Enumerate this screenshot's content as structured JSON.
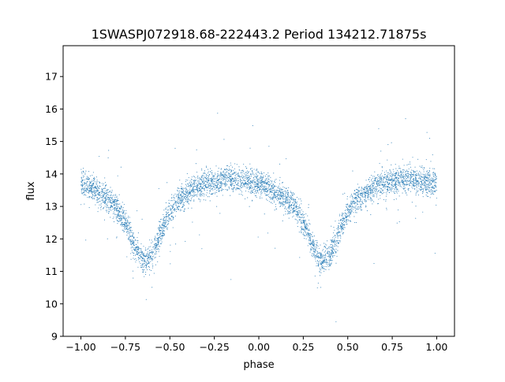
{
  "chart_data": {
    "type": "scatter",
    "title": "1SWASPJ072918.68-222443.2 Period 134212.71875s",
    "xlabel": "phase",
    "ylabel": "flux",
    "xlim": [
      -1.1,
      1.1
    ],
    "ylim": [
      9.0,
      17.95
    ],
    "xticks": [
      -1.0,
      -0.75,
      -0.5,
      -0.25,
      0.0,
      0.25,
      0.5,
      0.75,
      1.0
    ],
    "xtick_labels": [
      "−1.00",
      "−0.75",
      "−0.50",
      "−0.25",
      "0.00",
      "0.25",
      "0.50",
      "0.75",
      "1.00"
    ],
    "yticks": [
      9,
      10,
      11,
      12,
      13,
      14,
      15,
      16,
      17
    ],
    "ytick_labels": [
      "9",
      "10",
      "11",
      "12",
      "13",
      "14",
      "15",
      "16",
      "17"
    ],
    "grid": false,
    "legend": "none",
    "point_color": "#1f77b4",
    "series": [
      {
        "marker": "dot",
        "trend": {
          "phase": [
            -1.0,
            -0.95,
            -0.9,
            -0.85,
            -0.8,
            -0.75,
            -0.7,
            -0.65,
            -0.6,
            -0.55,
            -0.5,
            -0.45,
            -0.4,
            -0.35,
            -0.3,
            -0.25,
            -0.2,
            -0.15,
            -0.1,
            -0.05,
            0.0,
            0.05,
            0.1,
            0.15,
            0.2,
            0.25,
            0.3,
            0.35,
            0.4,
            0.45,
            0.5,
            0.55,
            0.6,
            0.65,
            0.7,
            0.75,
            0.8,
            0.85,
            0.9,
            0.95,
            1.0
          ],
          "flux": [
            13.7,
            13.6,
            13.4,
            13.2,
            13.0,
            12.5,
            11.8,
            11.3,
            11.5,
            12.2,
            12.8,
            13.2,
            13.4,
            13.6,
            13.7,
            13.75,
            13.85,
            13.85,
            13.8,
            13.75,
            13.7,
            13.6,
            13.4,
            13.2,
            13.0,
            12.5,
            11.8,
            11.3,
            11.5,
            12.2,
            12.8,
            13.2,
            13.4,
            13.6,
            13.7,
            13.75,
            13.85,
            13.85,
            13.8,
            13.75,
            13.7
          ]
        }
      }
    ]
  }
}
